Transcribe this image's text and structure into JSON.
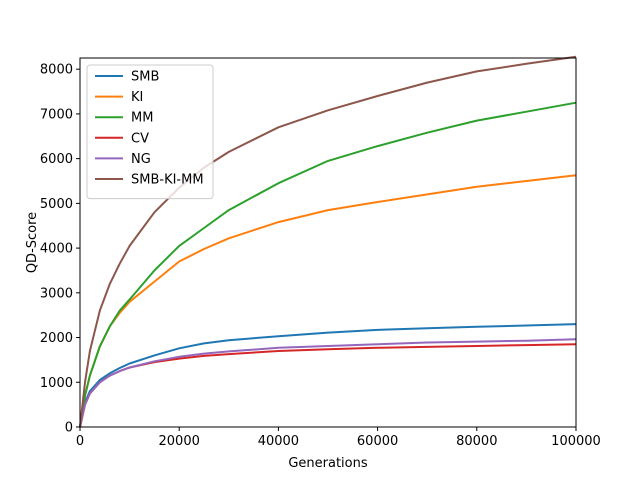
{
  "chart_data": {
    "type": "line",
    "title": "",
    "xlabel": "Generations",
    "ylabel": "QD-Score",
    "xlim": [
      0,
      100000
    ],
    "ylim": [
      0,
      8250
    ],
    "xticks": [
      0,
      20000,
      40000,
      60000,
      80000,
      100000
    ],
    "yticks": [
      0,
      1000,
      2000,
      3000,
      4000,
      5000,
      6000,
      7000,
      8000
    ],
    "grid": false,
    "legend_position": "top-left",
    "series": [
      {
        "name": "SMB",
        "color": "#1f77b4",
        "x": [
          0,
          1000,
          2000,
          4000,
          6000,
          8000,
          10000,
          15000,
          20000,
          25000,
          30000,
          40000,
          50000,
          60000,
          70000,
          80000,
          90000,
          100000
        ],
        "y": [
          0,
          550,
          800,
          1050,
          1200,
          1320,
          1420,
          1600,
          1760,
          1870,
          1940,
          2030,
          2110,
          2170,
          2210,
          2240,
          2270,
          2300
        ]
      },
      {
        "name": "KI",
        "color": "#ff7f0e",
        "x": [
          0,
          1000,
          2000,
          4000,
          6000,
          8000,
          10000,
          15000,
          20000,
          25000,
          30000,
          40000,
          50000,
          60000,
          70000,
          80000,
          90000,
          100000
        ],
        "y": [
          0,
          700,
          1150,
          1800,
          2250,
          2550,
          2800,
          3250,
          3700,
          3980,
          4220,
          4580,
          4850,
          5030,
          5200,
          5370,
          5500,
          5630
        ]
      },
      {
        "name": "MM",
        "color": "#2ca02c",
        "x": [
          0,
          1000,
          2000,
          4000,
          6000,
          8000,
          10000,
          15000,
          20000,
          25000,
          30000,
          40000,
          50000,
          60000,
          70000,
          80000,
          90000,
          100000
        ],
        "y": [
          0,
          700,
          1150,
          1800,
          2250,
          2600,
          2850,
          3500,
          4050,
          4450,
          4850,
          5450,
          5950,
          6280,
          6580,
          6850,
          7050,
          7250
        ]
      },
      {
        "name": "CV",
        "color": "#d62728",
        "x": [
          0,
          1000,
          2000,
          4000,
          6000,
          8000,
          10000,
          15000,
          20000,
          25000,
          30000,
          40000,
          50000,
          60000,
          70000,
          80000,
          90000,
          100000
        ],
        "y": [
          0,
          500,
          750,
          1000,
          1150,
          1250,
          1330,
          1450,
          1530,
          1590,
          1630,
          1700,
          1740,
          1770,
          1790,
          1810,
          1830,
          1850
        ]
      },
      {
        "name": "NG",
        "color": "#9467bd",
        "x": [
          0,
          1000,
          2000,
          4000,
          6000,
          8000,
          10000,
          15000,
          20000,
          25000,
          30000,
          40000,
          50000,
          60000,
          70000,
          80000,
          90000,
          100000
        ],
        "y": [
          0,
          500,
          750,
          1000,
          1150,
          1250,
          1330,
          1470,
          1570,
          1640,
          1690,
          1770,
          1810,
          1850,
          1890,
          1910,
          1930,
          1960
        ]
      },
      {
        "name": "SMB-KI-MM",
        "color": "#8c564b",
        "x": [
          0,
          1000,
          2000,
          4000,
          6000,
          8000,
          10000,
          15000,
          20000,
          25000,
          30000,
          40000,
          50000,
          60000,
          70000,
          80000,
          90000,
          100000
        ],
        "y": [
          0,
          1000,
          1700,
          2600,
          3200,
          3650,
          4050,
          4800,
          5350,
          5800,
          6150,
          6700,
          7080,
          7400,
          7700,
          7950,
          8120,
          8280
        ]
      }
    ]
  }
}
